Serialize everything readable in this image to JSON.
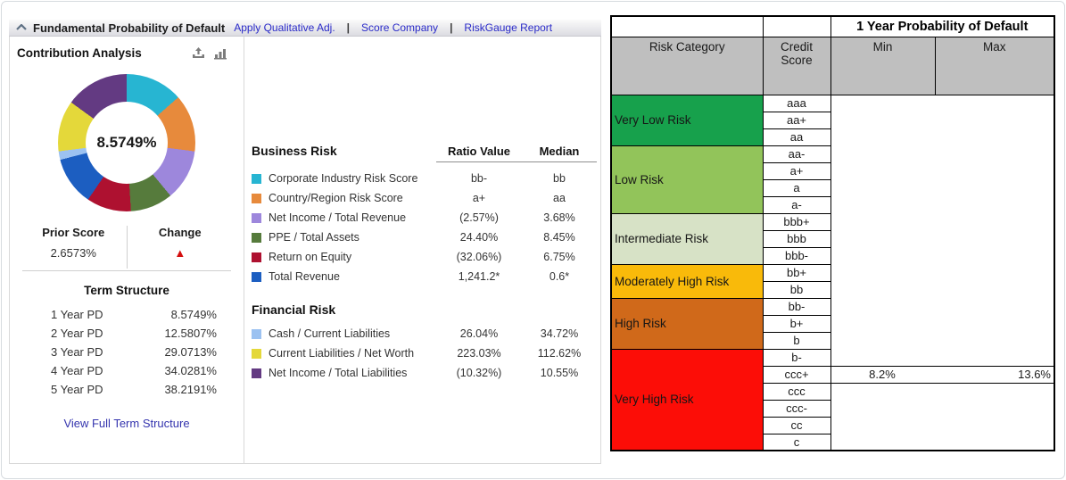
{
  "header": {
    "collapse_icon": "chevron-up-icon",
    "title": "Fundamental Probability of Default",
    "links": [
      "Apply Qualitative Adj.",
      "Score Company",
      "RiskGauge Report"
    ]
  },
  "contribution": {
    "title": "Contribution Analysis",
    "icons": [
      "export-icon",
      "bar-chart-icon"
    ],
    "center_value": "8.5749%",
    "prior_score_label": "Prior Score",
    "prior_score_value": "2.6573%",
    "change_label": "Change",
    "change_direction": "up",
    "change_color": "#d40f0f",
    "term_structure": {
      "title": "Term Structure",
      "rows": [
        {
          "label": "1 Year PD",
          "value": "8.5749%"
        },
        {
          "label": "2 Year PD",
          "value": "12.5807%"
        },
        {
          "label": "3 Year PD",
          "value": "29.0713%"
        },
        {
          "label": "4 Year PD",
          "value": "34.0281%"
        },
        {
          "label": "5 Year PD",
          "value": "38.2191%"
        }
      ],
      "link": "View Full Term Structure"
    }
  },
  "ratios": {
    "col_ratio": "Ratio Value",
    "col_median": "Median",
    "business": {
      "title": "Business Risk",
      "rows": [
        {
          "label": "Corporate Industry Risk Score",
          "color": "#27b5d2",
          "ratio": "bb-",
          "median": "bb"
        },
        {
          "label": "Country/Region Risk Score",
          "color": "#e78a3c",
          "ratio": "a+",
          "median": "aa"
        },
        {
          "label": "Net Income / Total Revenue",
          "color": "#9d87dc",
          "ratio": "(2.57%)",
          "median": "3.68%"
        },
        {
          "label": "PPE / Total Assets",
          "color": "#567b3c",
          "ratio": "24.40%",
          "median": "8.45%"
        },
        {
          "label": "Return on Equity",
          "color": "#ae1130",
          "ratio": "(32.06%)",
          "median": "6.75%"
        },
        {
          "label": "Total Revenue",
          "color": "#1c5ec1",
          "ratio": "1,241.2*",
          "median": "0.6*"
        }
      ]
    },
    "financial": {
      "title": "Financial Risk",
      "rows": [
        {
          "label": "Cash / Current Liabilities",
          "color": "#9cc2f1",
          "ratio": "26.04%",
          "median": "34.72%"
        },
        {
          "label": "Current Liabilities / Net Worth",
          "color": "#e4d83a",
          "ratio": "223.03%",
          "median": "112.62%"
        },
        {
          "label": "Net Income / Total Liabilities",
          "color": "#633a82",
          "ratio": "(10.32%)",
          "median": "10.55%"
        }
      ]
    }
  },
  "risk_table": {
    "span_header": "1 Year Probability of Default",
    "headers": {
      "category": "Risk Category",
      "score": "Credit Score",
      "min": "Min",
      "max": "Max"
    },
    "header_bg": "#bfbfbf",
    "categories": [
      {
        "name": "Very Low Risk",
        "color": "#17a14c",
        "scores": [
          "aaa",
          "aa+",
          "aa"
        ]
      },
      {
        "name": "Low Risk",
        "color": "#92c45a",
        "scores": [
          "aa-",
          "a+",
          "a",
          "a-"
        ]
      },
      {
        "name": "Intermediate Risk",
        "color": "#d7e2c6",
        "scores": [
          "bbb+",
          "bbb",
          "bbb-"
        ]
      },
      {
        "name": "Moderately High Risk",
        "color": "#f9ba0a",
        "scores": [
          "bb+",
          "bb"
        ]
      },
      {
        "name": "High Risk",
        "color": "#d0691a",
        "scores": [
          "bb-",
          "b+",
          "b"
        ]
      },
      {
        "name": "Very High Risk",
        "color": "#fc0d07",
        "scores": [
          "b-",
          "ccc+",
          "ccc",
          "ccc-",
          "cc",
          "c"
        ]
      }
    ],
    "highlight": {
      "score": "ccc+",
      "min": "8.2%",
      "max": "13.6%"
    }
  },
  "chart_data": {
    "type": "pie",
    "title": "Contribution Analysis",
    "center_label": "8.5749%",
    "legend_position": "middle-panel",
    "series": [
      {
        "name": "Corporate Industry Risk Score",
        "value": 13.5,
        "color": "#27b5d2"
      },
      {
        "name": "Country/Region Risk Score",
        "value": 13.5,
        "color": "#e78a3c"
      },
      {
        "name": "Net Income / Total Revenue",
        "value": 12,
        "color": "#9d87dc"
      },
      {
        "name": "PPE / Total Assets",
        "value": 10,
        "color": "#567b3c"
      },
      {
        "name": "Return on Equity",
        "value": 10.5,
        "color": "#ae1130"
      },
      {
        "name": "Total Revenue",
        "value": 11.5,
        "color": "#1c5ec1"
      },
      {
        "name": "Cash / Current Liabilities",
        "value": 2,
        "color": "#9cc2f1"
      },
      {
        "name": "Current Liabilities / Net Worth",
        "value": 12,
        "color": "#e4d83a"
      },
      {
        "name": "Net Income / Total Liabilities",
        "value": 15,
        "color": "#633a82"
      }
    ]
  }
}
